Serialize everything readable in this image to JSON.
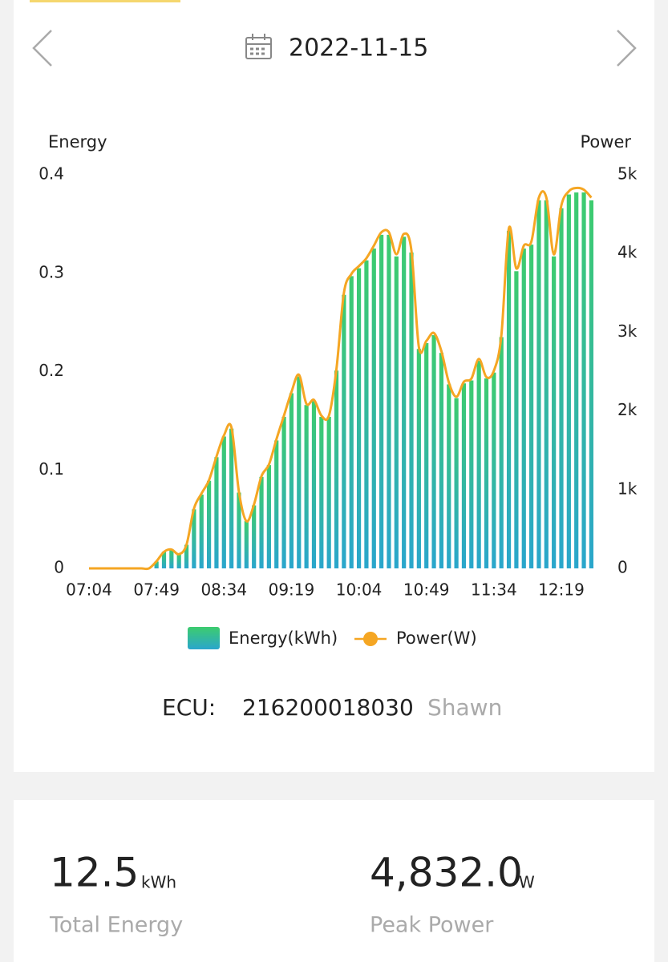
{
  "header": {
    "date": "2022-11-15"
  },
  "chart_data": {
    "type": "bar",
    "y_label": "Energy",
    "y2_label": "Power",
    "categories": [
      "07:04",
      null,
      null,
      null,
      null,
      null,
      null,
      null,
      null,
      "07:49",
      null,
      null,
      null,
      null,
      null,
      null,
      null,
      null,
      "08:34",
      null,
      null,
      null,
      null,
      null,
      null,
      null,
      null,
      "09:19",
      null,
      null,
      null,
      null,
      null,
      null,
      null,
      null,
      "10:04",
      null,
      null,
      null,
      null,
      null,
      null,
      null,
      null,
      "10:49",
      null,
      null,
      null,
      null,
      null,
      null,
      null,
      null,
      "11:34",
      null,
      null,
      null,
      null,
      null,
      null,
      null,
      null,
      "12:19",
      null,
      null,
      null,
      null
    ],
    "series": [
      {
        "name": "Energy(kWh)",
        "type": "bar",
        "color": "#3dcc6e",
        "color2": "#2aa6cc",
        "values": [
          0,
          0,
          0,
          0,
          0,
          0,
          0,
          0,
          0,
          0.007,
          0.017,
          0.019,
          0.014,
          0.024,
          0.06,
          0.075,
          0.089,
          0.113,
          0.134,
          0.142,
          0.077,
          0.048,
          0.064,
          0.093,
          0.105,
          0.13,
          0.154,
          0.178,
          0.195,
          0.166,
          0.17,
          0.154,
          0.154,
          0.201,
          0.278,
          0.297,
          0.305,
          0.313,
          0.325,
          0.339,
          0.339,
          0.317,
          0.337,
          0.321,
          0.223,
          0.229,
          0.237,
          0.219,
          0.187,
          0.173,
          0.188,
          0.191,
          0.211,
          0.193,
          0.199,
          0.235,
          0.343,
          0.302,
          0.325,
          0.329,
          0.374,
          0.374,
          0.317,
          0.366,
          0.38,
          0.382,
          0.382,
          0.374
        ]
      },
      {
        "name": "Power(W)",
        "type": "line",
        "axis": "y2",
        "color": "#f5a623",
        "values": [
          0,
          0,
          0,
          0,
          0,
          0,
          0,
          0,
          0,
          90,
          210,
          240,
          180,
          300,
          760,
          950,
          1120,
          1420,
          1690,
          1790,
          970,
          600,
          810,
          1170,
          1320,
          1640,
          1940,
          2240,
          2460,
          2090,
          2140,
          1940,
          1940,
          2530,
          3500,
          3740,
          3840,
          3940,
          4100,
          4270,
          4270,
          3990,
          4250,
          4040,
          2810,
          2890,
          2990,
          2760,
          2360,
          2180,
          2370,
          2410,
          2660,
          2430,
          2510,
          2960,
          4320,
          3810,
          4100,
          4150,
          4710,
          4710,
          3990,
          4610,
          4790,
          4832,
          4810,
          4710
        ]
      }
    ],
    "ylim": [
      0,
      0.4
    ],
    "yticks": [
      0,
      0.1,
      0.2,
      0.3,
      0.4
    ],
    "y2lim": [
      0,
      5000
    ],
    "y2ticks": [
      0,
      {
        "value": 1000,
        "label": "1k"
      },
      {
        "value": 2000,
        "label": "2k"
      },
      {
        "value": 3000,
        "label": "3k"
      },
      {
        "value": 4000,
        "label": "4k"
      },
      {
        "value": 5000,
        "label": "5k"
      }
    ],
    "grid": false
  },
  "ecu": {
    "label": "ECU:",
    "id": "216200018030",
    "name": "Shawn"
  },
  "summary": [
    {
      "value": "12.5",
      "unit": "kWh",
      "label": "Total Energy"
    },
    {
      "value": "4,832.0",
      "unit": "W",
      "label": "Peak Power"
    }
  ]
}
